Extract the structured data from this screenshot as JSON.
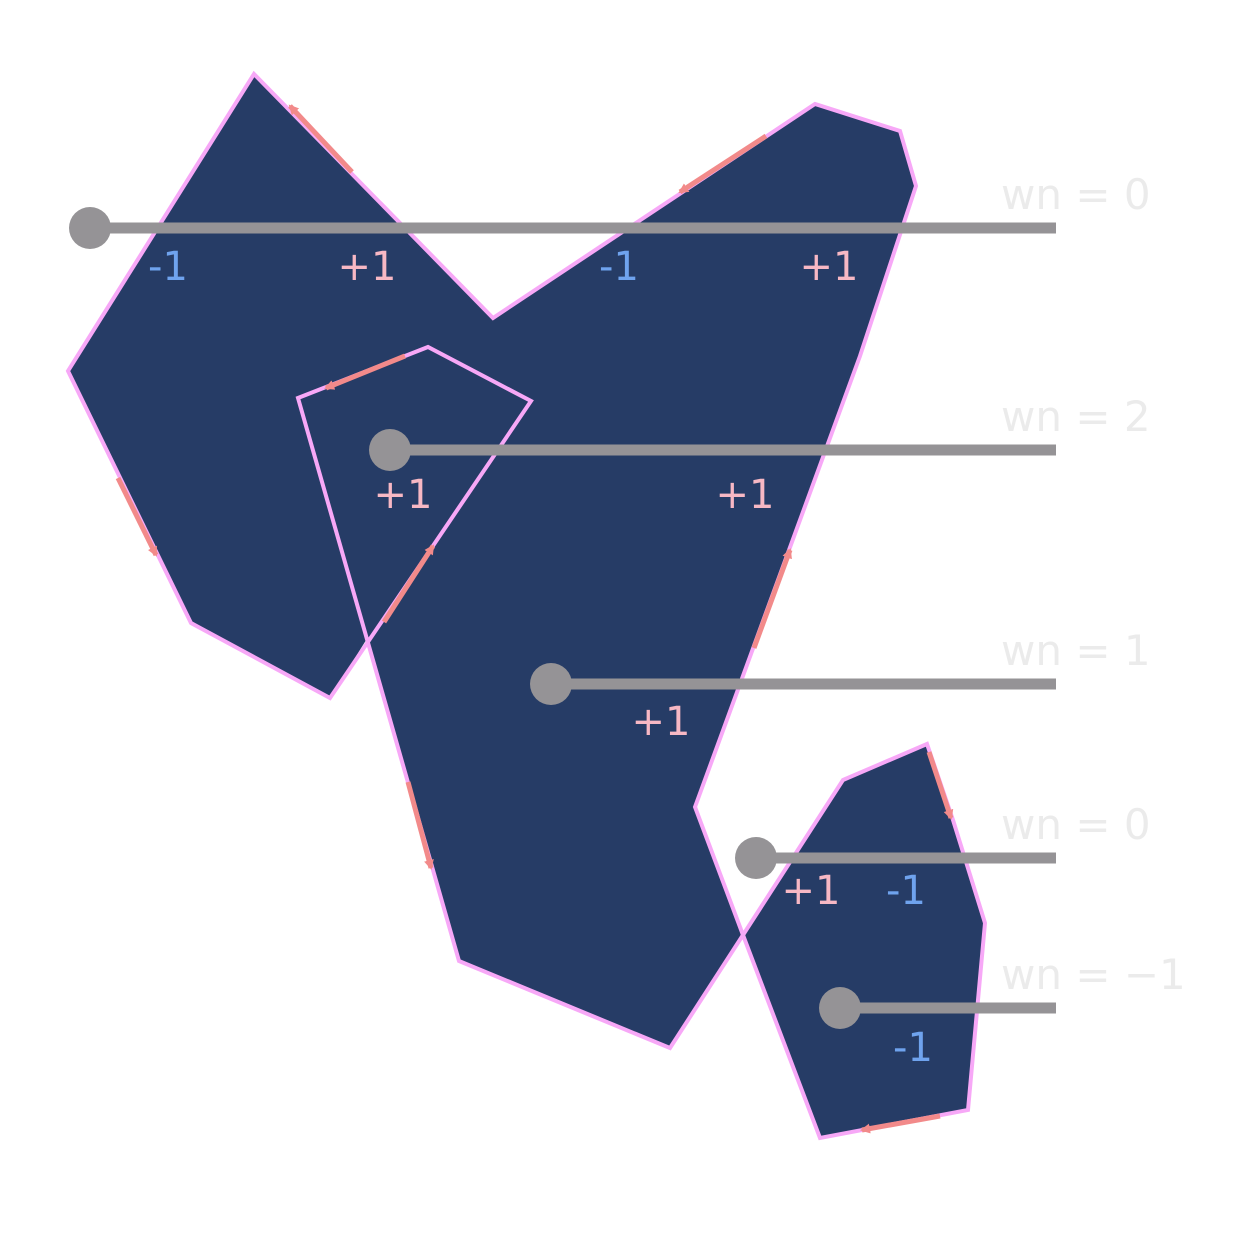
{
  "colors": {
    "fill": "#263c66",
    "outline": "#f7a8f7",
    "arrow": "#f28a8a",
    "ray": "#959396",
    "plus": "#f7b8c4",
    "minus": "#6fa3ee",
    "wn_label": "#ebebeb"
  },
  "winding_labels": [
    "wn = 0",
    "wn = 2",
    "wn = 1",
    "wn = 0",
    "wn = −1"
  ],
  "crossings": [
    "-1",
    "+1",
    "-1",
    "+1",
    "+1",
    "+1",
    "+1",
    "+1",
    "-1",
    "-1"
  ]
}
